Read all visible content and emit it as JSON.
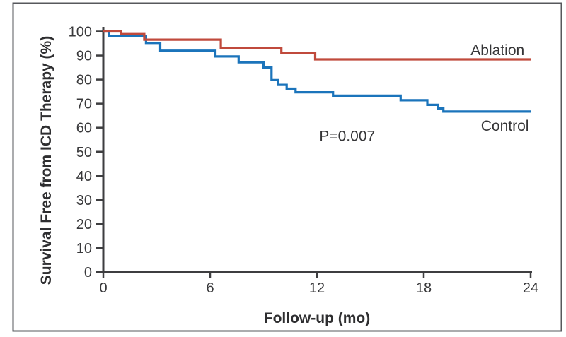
{
  "figure": {
    "p_value_label": "P=0.007",
    "border_color": "#57585c",
    "background_color": "#ffffff"
  },
  "chart_data": {
    "type": "line",
    "subtype": "kaplan-meier-step",
    "title": "",
    "xlabel": "Follow-up (mo)",
    "ylabel": "Survival Free from ICD Therapy (%)",
    "xlim": [
      0,
      24
    ],
    "ylim": [
      0,
      100
    ],
    "x_ticks": [
      0,
      6,
      12,
      18,
      24
    ],
    "y_ticks": [
      0,
      10,
      20,
      30,
      40,
      50,
      60,
      70,
      80,
      90,
      100
    ],
    "grid": false,
    "legend_position": "inline-right-of-curves",
    "axis_color": "#3e3e40",
    "text_color": "#39393b",
    "annotation": {
      "text": "P=0.007",
      "x": 13.7,
      "y": 56.5
    },
    "series": [
      {
        "name": "Ablation",
        "color": "#c04a3c",
        "label_at": {
          "x": 23.65,
          "y": 90.2
        },
        "end_month": 24,
        "steps": [
          [
            0,
            100
          ],
          [
            1.0,
            98.9
          ],
          [
            2.3,
            96.6
          ],
          [
            6.6,
            93.2
          ],
          [
            10.0,
            91.0
          ],
          [
            11.9,
            88.4
          ]
        ]
      },
      {
        "name": "Control",
        "color": "#1b74bb",
        "label_at": {
          "x": 23.9,
          "y": 58.7
        },
        "end_month": 24,
        "steps": [
          [
            0,
            100
          ],
          [
            0.3,
            98.2
          ],
          [
            2.4,
            95.2
          ],
          [
            3.2,
            92.0
          ],
          [
            6.3,
            89.6
          ],
          [
            7.6,
            87.2
          ],
          [
            9.0,
            85.0
          ],
          [
            9.45,
            79.8
          ],
          [
            9.8,
            77.8
          ],
          [
            10.3,
            76.2
          ],
          [
            10.8,
            74.7
          ],
          [
            12.9,
            73.3
          ],
          [
            16.7,
            71.4
          ],
          [
            18.2,
            69.5
          ],
          [
            18.8,
            68.0
          ],
          [
            19.1,
            66.7
          ]
        ]
      }
    ]
  }
}
